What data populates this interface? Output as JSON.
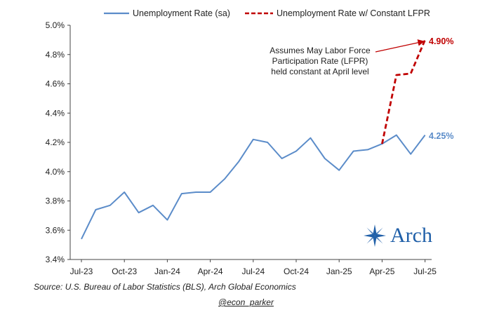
{
  "chart_data": {
    "type": "line",
    "x_ticks": [
      "Jul-23",
      "Oct-23",
      "Jan-24",
      "Apr-24",
      "Jul-24",
      "Oct-24",
      "Jan-25",
      "Apr-25",
      "Jul-25"
    ],
    "y_ticks": [
      "3.4%",
      "3.6%",
      "3.8%",
      "4.0%",
      "4.2%",
      "4.4%",
      "4.6%",
      "4.8%",
      "5.0%"
    ],
    "ylim": [
      3.4,
      5.0
    ],
    "grid": false,
    "legend_position": "top",
    "series": [
      {
        "name": "Unemployment Rate (sa)",
        "style": "solid",
        "color": "#5b8cc9",
        "x": [
          "2023-07",
          "2023-08",
          "2023-09",
          "2023-10",
          "2023-11",
          "2023-12",
          "2024-01",
          "2024-02",
          "2024-03",
          "2024-04",
          "2024-05",
          "2024-06",
          "2024-07",
          "2024-08",
          "2024-09",
          "2024-10",
          "2024-11",
          "2024-12",
          "2025-01",
          "2025-02",
          "2025-03",
          "2025-04",
          "2025-05",
          "2025-06",
          "2025-07"
        ],
        "values": [
          3.54,
          3.74,
          3.77,
          3.86,
          3.72,
          3.77,
          3.67,
          3.85,
          3.86,
          3.86,
          3.95,
          4.07,
          4.22,
          4.2,
          4.09,
          4.14,
          4.23,
          4.09,
          4.01,
          4.14,
          4.15,
          4.19,
          4.25,
          4.12,
          4.25
        ]
      },
      {
        "name": "Unemployment Rate w/ Constant LFPR",
        "style": "dashed",
        "color": "#c00000",
        "x": [
          "2025-04",
          "2025-05",
          "2025-06",
          "2025-07"
        ],
        "values": [
          4.19,
          4.66,
          4.67,
          4.9
        ]
      }
    ],
    "end_labels": [
      {
        "text": "4.25%",
        "color": "#5b8cc9"
      },
      {
        "text": "4.90%",
        "color": "#c00000"
      }
    ],
    "annotation": {
      "lines": [
        "Assumes May Labor Force",
        "Participation Rate (LFPR)",
        "held constant at April level"
      ],
      "arrow_color": "#c00000"
    }
  },
  "source": "Source: U.S. Bureau of Labor Statistics (BLS), Arch Global Economics",
  "credit": "@econ_parker",
  "logo": {
    "text": "Arch",
    "color": "#1f5fa8",
    "icon": "compass-star-icon"
  }
}
